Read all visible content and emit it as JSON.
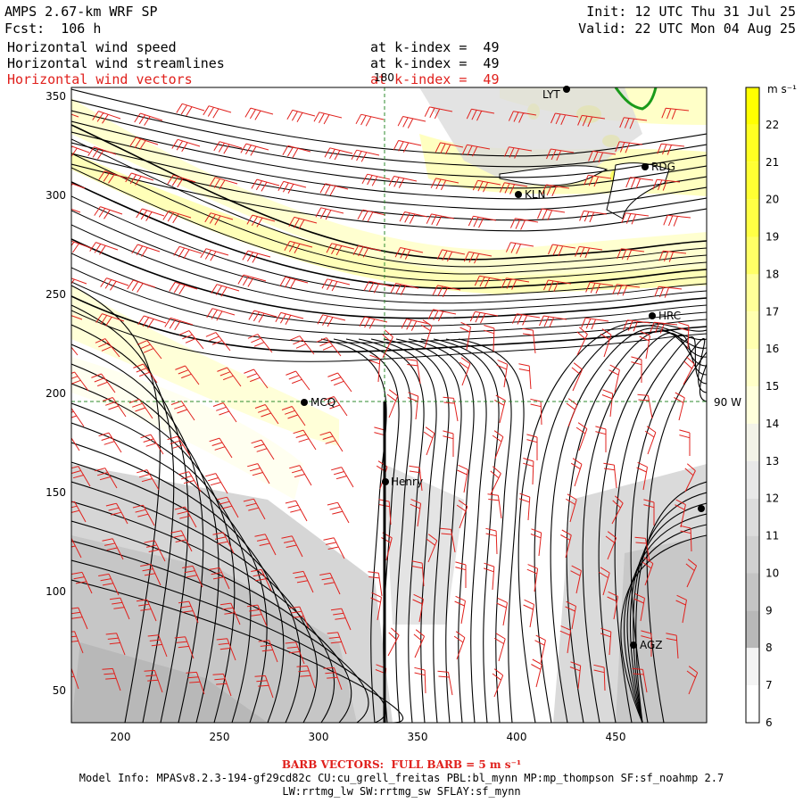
{
  "header": {
    "title": "AMPS 2.67-km WRF SP",
    "forecast": "Fcst:  106 h",
    "init": "Init: 12 UTC Thu 31 Jul 25",
    "valid": "Valid: 22 UTC Mon 04 Aug 25",
    "fields": [
      {
        "name": "Horizontal wind speed",
        "level": "at k-index =  49",
        "color": "#000000"
      },
      {
        "name": "Horizontal wind streamlines",
        "level": "at k-index =  49",
        "color": "#000000"
      },
      {
        "name": "Horizontal wind vectors",
        "level": "at k-index =  49",
        "color": "#e0201c"
      }
    ]
  },
  "map": {
    "x_ticks": [
      "200",
      "250",
      "300",
      "350",
      "400",
      "450"
    ],
    "y_ticks": [
      "50",
      "100",
      "150",
      "200",
      "250",
      "300",
      "350"
    ],
    "meridian_label": "180",
    "parallel_label": "90 W",
    "stations": [
      "KLN",
      "RDG",
      "HRC",
      "MCQ",
      "Henry",
      "AGZ",
      "LYT"
    ]
  },
  "colorbar": {
    "unit": "m s⁻¹",
    "labels": [
      "22",
      "21",
      "20",
      "19",
      "18",
      "17",
      "16",
      "15",
      "14",
      "13",
      "12",
      "11",
      "10",
      "9",
      "8",
      "7",
      "6"
    ],
    "colors": [
      "#ffff00",
      "#ffff22",
      "#ffff33",
      "#ffff44",
      "#ffff66",
      "#ffff99",
      "#ffffb0",
      "#ffffc8",
      "#ffffdc",
      "#f3f3e8",
      "#e8e8e8",
      "#dcdcdc",
      "#d0d0d0",
      "#c4c4c4",
      "#b8b8b8",
      "#f4f4f4",
      "#ffffff"
    ]
  },
  "footer": {
    "barb_note": "BARB VECTORS:  FULL BARB = 5 m s⁻¹",
    "model_info": "Model Info: MPASv8.2.3-194-gf29cd82c CU:cu_grell_freitas PBL:bl_mynn MP:mp_thompson SF:sf_noahmp 2.7",
    "physics": "LW:rrtmg_lw SW:rrtmg_sw SFLAY:sf_mynn"
  }
}
